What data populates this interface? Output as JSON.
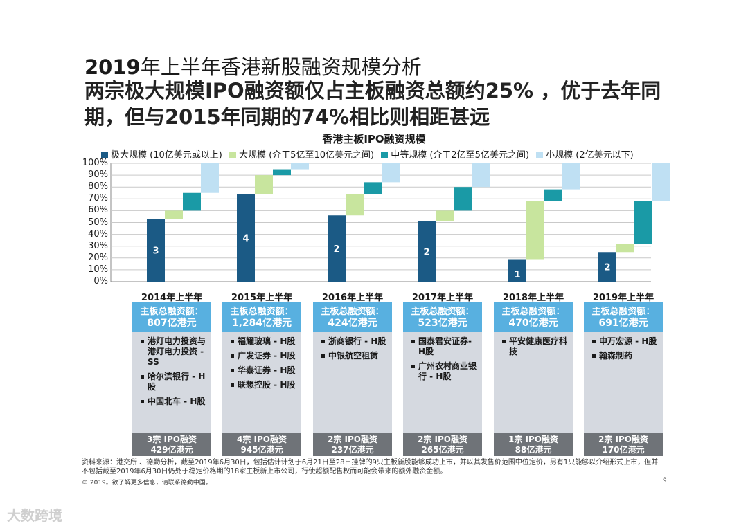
{
  "header": {
    "title_year": "2019",
    "title_rest": "年上半年香港新股融资规模分析",
    "subtitle": "两宗极大规模IPO融资额仅占主板融资总额约25% ，优于去年同期，但与2015年同期的74%相比则相距甚远"
  },
  "chart_data": {
    "type": "bar",
    "subtype": "stacked-waterfall-100-percent",
    "title": "香港主板IPO融资规模",
    "categories": [
      "2014年上半年",
      "2015年上半年",
      "2016年上半年",
      "2017年上半年",
      "2018年上半年",
      "2019年上半年"
    ],
    "yticks": [
      "100%",
      "90%",
      "80%",
      "70%",
      "60%",
      "50%",
      "40%",
      "30%",
      "20%",
      "10%",
      "0%"
    ],
    "ylim": [
      0,
      100
    ],
    "series": [
      {
        "name": "极大规模 (10亿美元或以上)",
        "color": "#1b5a85",
        "values": [
          53,
          74,
          56,
          51,
          19,
          25
        ],
        "labels": [
          "3",
          "4",
          "2",
          "2",
          "1",
          "2"
        ]
      },
      {
        "name": "大规模 (介于5亿至10亿美元之间)",
        "color": "#c8e59e",
        "values": [
          7,
          16,
          18,
          9,
          49,
          7
        ],
        "labels": [
          "",
          "",
          "",
          "",
          "",
          ""
        ]
      },
      {
        "name": "中等规模 (介于2亿至5亿美元之间)",
        "color": "#1a9aa6",
        "values": [
          15,
          5,
          10,
          20,
          10,
          36
        ],
        "labels": [
          "",
          "",
          "",
          "",
          "",
          ""
        ]
      },
      {
        "name": "小规模 (2亿美元以下)",
        "color": "#bfe0f3",
        "values": [
          25,
          5,
          16,
          20,
          22,
          32
        ],
        "labels": [
          "",
          "",
          "",
          "",
          "",
          ""
        ]
      }
    ]
  },
  "panels": [
    {
      "head": "主板总融资额：",
      "amount": "807亿港元",
      "items": [
        "港灯电力投资与港灯电力投资 - SS",
        "哈尔滨银行 - H股",
        "中国北车 - H股"
      ],
      "foot1": "3宗 IPO融资",
      "foot2": "429亿港元"
    },
    {
      "head": "主板总融资额：",
      "amount": "1,284亿港元",
      "items": [
        "福耀玻璃 - H股",
        "广发证券 - H股",
        "华泰证券 - H股",
        "联想控股 - H股"
      ],
      "foot1": "4宗 IPO融资",
      "foot2": "945亿港元"
    },
    {
      "head": "主板总融资额：",
      "amount": "424亿港元",
      "items": [
        "浙商银行 - H股",
        "中银航空租赁"
      ],
      "foot1": "2宗 IPO融资",
      "foot2": "237亿港元"
    },
    {
      "head": "主板总融资额：",
      "amount": "523亿港元",
      "items": [
        "国泰君安证券- H股",
        "广州农村商业银行 - H股"
      ],
      "foot1": "2宗 IPO融资",
      "foot2": "265亿港元"
    },
    {
      "head": "主板总融资额：",
      "amount": "470亿港元",
      "items": [
        "平安健康医疗科技"
      ],
      "foot1": "1宗 IPO融资",
      "foot2": "88亿港元"
    },
    {
      "head": "主板总融资额：",
      "amount": "691亿港元",
      "items": [
        "申万宏源 - H股",
        "翰森制药"
      ],
      "foot1": "2宗 IPO融资",
      "foot2": "170亿港元"
    }
  ],
  "footer": {
    "source_line1": "资料来源：港交所 、德勤分析，截至2019年6月30日，包括估计计划于6月21日至28日挂牌的9只主板新股能够成功上市，并以其发售价范围中位定价，另有1只能够以介绍形式上市，但并",
    "source_line2": "不包括截至2019年6月30日仍处于稳定价格期的18家主板新上市公司，行使超额配售权而可能会带来的额外融资金额。",
    "copyright": "© 2019。欲了解更多信息，请联系德勤中国。",
    "page_number": "9",
    "watermark": "大数跨境"
  }
}
